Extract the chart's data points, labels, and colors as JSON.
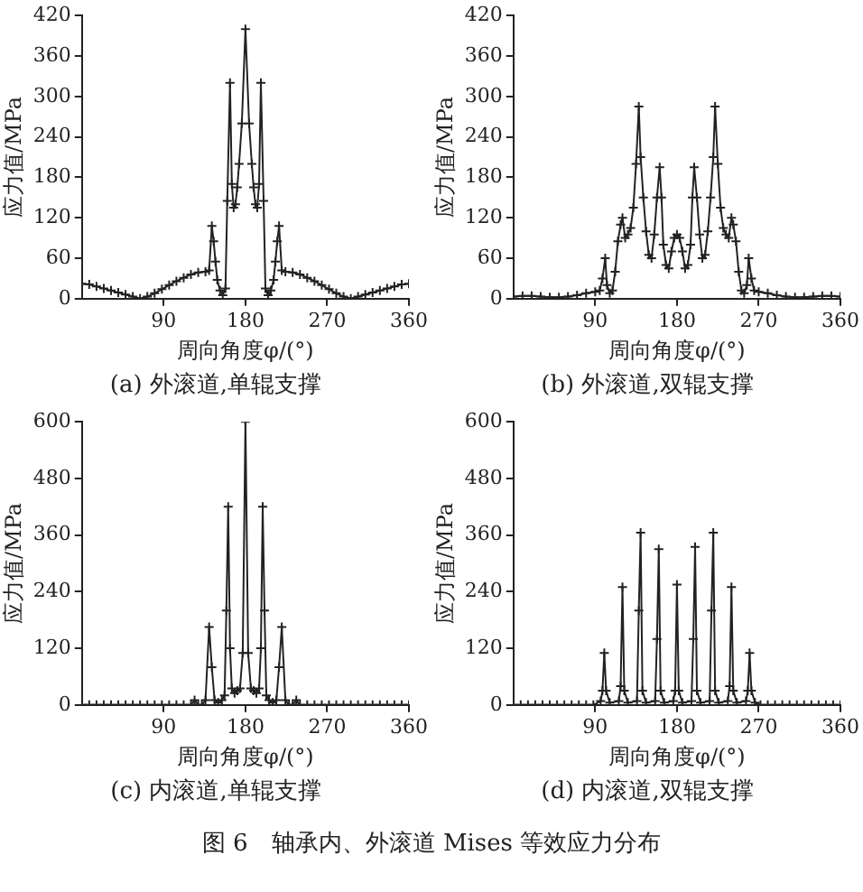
{
  "chart_data": [
    {
      "type": "line",
      "xlabel": "周向角度φ/(°)",
      "ylabel": "应力值/MPa",
      "annotations": [
        "(a) 外滚道,单辊支撑"
      ],
      "xlim": [
        0,
        360
      ],
      "xticks": [
        90,
        180,
        270,
        360
      ],
      "ylim": [
        0,
        420
      ],
      "yticks": [
        0,
        60,
        120,
        180,
        240,
        300,
        360,
        420
      ],
      "marker": "cross",
      "line_style": "solid",
      "legend": false,
      "x": [
        0,
        8,
        16,
        24,
        32,
        40,
        48,
        56,
        64,
        72,
        80,
        88,
        96,
        104,
        112,
        120,
        128,
        136,
        140,
        143,
        145,
        147,
        149,
        152,
        155,
        158,
        160,
        163,
        165,
        167,
        169,
        171,
        173,
        176,
        180,
        184,
        187,
        189,
        191,
        193,
        195,
        197,
        200,
        202,
        205,
        208,
        211,
        213,
        215,
        217,
        220,
        224,
        232,
        240,
        248,
        256,
        264,
        272,
        280,
        288,
        296,
        304,
        312,
        320,
        328,
        336,
        344,
        352,
        360
      ],
      "series": [
        {
          "color": "#222222",
          "values": [
            22,
            21,
            18,
            15,
            12,
            9,
            6,
            3,
            0,
            3,
            8,
            14,
            20,
            26,
            31,
            36,
            39,
            40,
            42,
            108,
            85,
            55,
            28,
            12,
            5,
            15,
            145,
            320,
            170,
            135,
            140,
            165,
            200,
            260,
            400,
            260,
            200,
            165,
            140,
            135,
            170,
            320,
            145,
            15,
            5,
            12,
            28,
            55,
            85,
            108,
            42,
            40,
            39,
            36,
            31,
            26,
            20,
            14,
            8,
            3,
            0,
            3,
            6,
            9,
            12,
            15,
            18,
            21,
            22
          ]
        }
      ]
    },
    {
      "type": "line",
      "xlabel": "周向角度φ/(°)",
      "ylabel": "应力值/MPa",
      "annotations": [
        "(b) 外滚道,双辊支撑"
      ],
      "xlim": [
        0,
        360
      ],
      "xticks": [
        90,
        180,
        270,
        360
      ],
      "ylim": [
        0,
        420
      ],
      "yticks": [
        0,
        60,
        120,
        180,
        240,
        300,
        360,
        420
      ],
      "marker": "cross",
      "line_style": "solid",
      "legend": false,
      "x": [
        0,
        10,
        20,
        30,
        40,
        50,
        60,
        70,
        80,
        90,
        95,
        98,
        101,
        103,
        106,
        109,
        112,
        115,
        118,
        120,
        123,
        126,
        129,
        132,
        135,
        138,
        140,
        143,
        146,
        149,
        152,
        155,
        158,
        161,
        163,
        165,
        168,
        171,
        174,
        177,
        180,
        183,
        186,
        189,
        192,
        195,
        197,
        199,
        202,
        205,
        208,
        211,
        214,
        217,
        220,
        222,
        225,
        228,
        231,
        234,
        237,
        240,
        242,
        245,
        248,
        251,
        254,
        257,
        259,
        262,
        265,
        270,
        280,
        290,
        300,
        310,
        320,
        330,
        340,
        350,
        360
      ],
      "series": [
        {
          "color": "#222222",
          "values": [
            3,
            4,
            4,
            3,
            2,
            2,
            3,
            5,
            8,
            10,
            12,
            30,
            60,
            20,
            8,
            12,
            40,
            85,
            110,
            120,
            90,
            95,
            105,
            135,
            200,
            285,
            210,
            150,
            100,
            65,
            60,
            95,
            150,
            195,
            150,
            80,
            50,
            45,
            70,
            90,
            95,
            90,
            70,
            45,
            50,
            80,
            150,
            195,
            150,
            95,
            60,
            65,
            100,
            150,
            210,
            285,
            200,
            135,
            105,
            95,
            90,
            120,
            110,
            85,
            40,
            12,
            8,
            20,
            60,
            30,
            12,
            10,
            8,
            5,
            3,
            2,
            2,
            3,
            4,
            4,
            3
          ]
        }
      ]
    },
    {
      "type": "line",
      "xlabel": "周向角度φ/(°)",
      "ylabel": "应力值/MPa",
      "annotations": [
        "(c) 内滚道,单辊支撑"
      ],
      "xlim": [
        0,
        360
      ],
      "xticks": [
        90,
        180,
        270,
        360
      ],
      "ylim": [
        0,
        600
      ],
      "yticks": [
        0,
        120,
        240,
        360,
        480,
        600
      ],
      "marker": "cross",
      "line_style": "solid",
      "legend": false,
      "x": [
        0,
        8,
        16,
        24,
        32,
        40,
        48,
        56,
        64,
        72,
        80,
        88,
        96,
        104,
        112,
        120,
        124,
        128,
        132,
        136,
        140,
        143,
        146,
        150,
        154,
        157,
        159,
        161,
        163,
        165,
        168,
        171,
        174,
        177,
        180,
        183,
        186,
        189,
        192,
        195,
        197,
        199,
        201,
        203,
        206,
        210,
        214,
        217,
        220,
        224,
        228,
        232,
        236,
        240,
        248,
        256,
        264,
        272,
        280,
        288,
        296,
        304,
        312,
        320,
        328,
        336,
        344,
        352,
        360
      ],
      "series": [
        {
          "color": "#222222",
          "values": [
            0,
            0,
            0,
            0,
            0,
            0,
            0,
            0,
            0,
            0,
            0,
            0,
            0,
            0,
            0,
            0,
            10,
            0,
            0,
            10,
            165,
            80,
            10,
            5,
            10,
            20,
            200,
            420,
            120,
            35,
            25,
            30,
            35,
            110,
            600,
            110,
            35,
            30,
            25,
            35,
            120,
            420,
            200,
            20,
            10,
            5,
            10,
            80,
            165,
            10,
            0,
            0,
            10,
            0,
            0,
            0,
            0,
            0,
            0,
            0,
            0,
            0,
            0,
            0,
            0,
            0,
            0,
            0,
            0
          ]
        }
      ]
    },
    {
      "type": "line",
      "xlabel": "周向角度φ/(°)",
      "ylabel": "应力值/MPa",
      "annotations": [
        "(d) 内滚道,双辊支撑",
        "图 6　轴承内、外滚道 Mises 等效应力分布"
      ],
      "xlim": [
        0,
        360
      ],
      "xticks": [
        90,
        180,
        270,
        360
      ],
      "ylim": [
        0,
        600
      ],
      "yticks": [
        0,
        120,
        240,
        360,
        480,
        600
      ],
      "marker": "cross",
      "line_style": "solid",
      "legend": false,
      "x": [
        0,
        8,
        16,
        24,
        32,
        40,
        48,
        56,
        64,
        72,
        80,
        88,
        96,
        98,
        100,
        102,
        106,
        116,
        118,
        120,
        122,
        126,
        136,
        138,
        140,
        142,
        146,
        156,
        158,
        160,
        162,
        166,
        176,
        178,
        180,
        182,
        186,
        196,
        198,
        200,
        202,
        206,
        216,
        218,
        220,
        222,
        226,
        236,
        238,
        240,
        242,
        246,
        256,
        258,
        260,
        262,
        266,
        272,
        280,
        288,
        296,
        304,
        312,
        320,
        328,
        336,
        344,
        352,
        360
      ],
      "series": [
        {
          "color": "#222222",
          "values": [
            0,
            0,
            0,
            0,
            0,
            0,
            0,
            0,
            0,
            0,
            0,
            0,
            8,
            30,
            110,
            30,
            5,
            8,
            40,
            250,
            30,
            5,
            8,
            200,
            365,
            30,
            5,
            8,
            140,
            330,
            30,
            5,
            8,
            30,
            255,
            30,
            5,
            8,
            140,
            335,
            30,
            5,
            8,
            200,
            365,
            30,
            5,
            8,
            40,
            250,
            30,
            5,
            8,
            30,
            110,
            30,
            5,
            0,
            0,
            0,
            0,
            0,
            0,
            0,
            0,
            0,
            0,
            0,
            0
          ]
        }
      ]
    }
  ]
}
